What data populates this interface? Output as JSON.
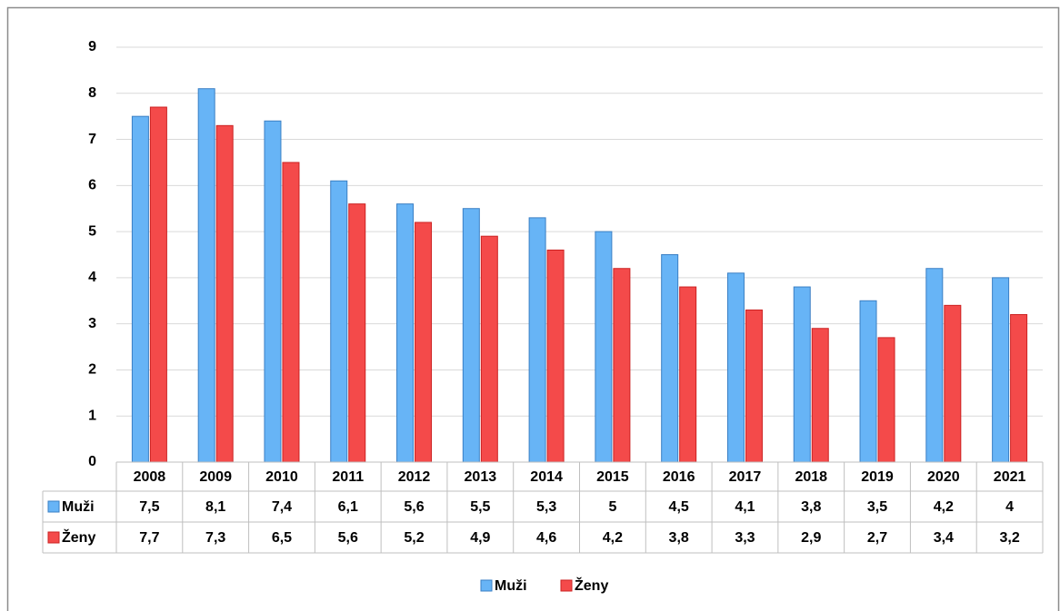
{
  "chart_data": {
    "type": "bar",
    "categories": [
      "2008",
      "2009",
      "2010",
      "2011",
      "2012",
      "2013",
      "2014",
      "2015",
      "2016",
      "2017",
      "2018",
      "2019",
      "2020",
      "2021"
    ],
    "series": [
      {
        "name": "Muži",
        "color": "#67b4f6",
        "values": [
          7.5,
          8.1,
          7.4,
          6.1,
          5.6,
          5.5,
          5.3,
          5,
          4.5,
          4.1,
          3.8,
          3.5,
          4.2,
          4
        ],
        "value_labels": [
          "7,5",
          "8,1",
          "7,4",
          "6,1",
          "5,6",
          "5,5",
          "5,3",
          "5",
          "4,5",
          "4,1",
          "3,8",
          "3,5",
          "4,2",
          "4"
        ]
      },
      {
        "name": "Ženy",
        "color": "#f44a4a",
        "values": [
          7.7,
          7.3,
          6.5,
          5.6,
          5.2,
          4.9,
          4.6,
          4.2,
          3.8,
          3.3,
          2.9,
          2.7,
          3.4,
          3.2
        ],
        "value_labels": [
          "7,7",
          "7,3",
          "6,5",
          "5,6",
          "5,2",
          "4,9",
          "4,6",
          "4,2",
          "3,8",
          "3,3",
          "2,9",
          "2,7",
          "3,4",
          "3,2"
        ]
      }
    ],
    "ylim": [
      0,
      9
    ],
    "yticks": [
      0,
      1,
      2,
      3,
      4,
      5,
      6,
      7,
      8,
      9
    ],
    "grid": true,
    "legend": "bottom"
  }
}
